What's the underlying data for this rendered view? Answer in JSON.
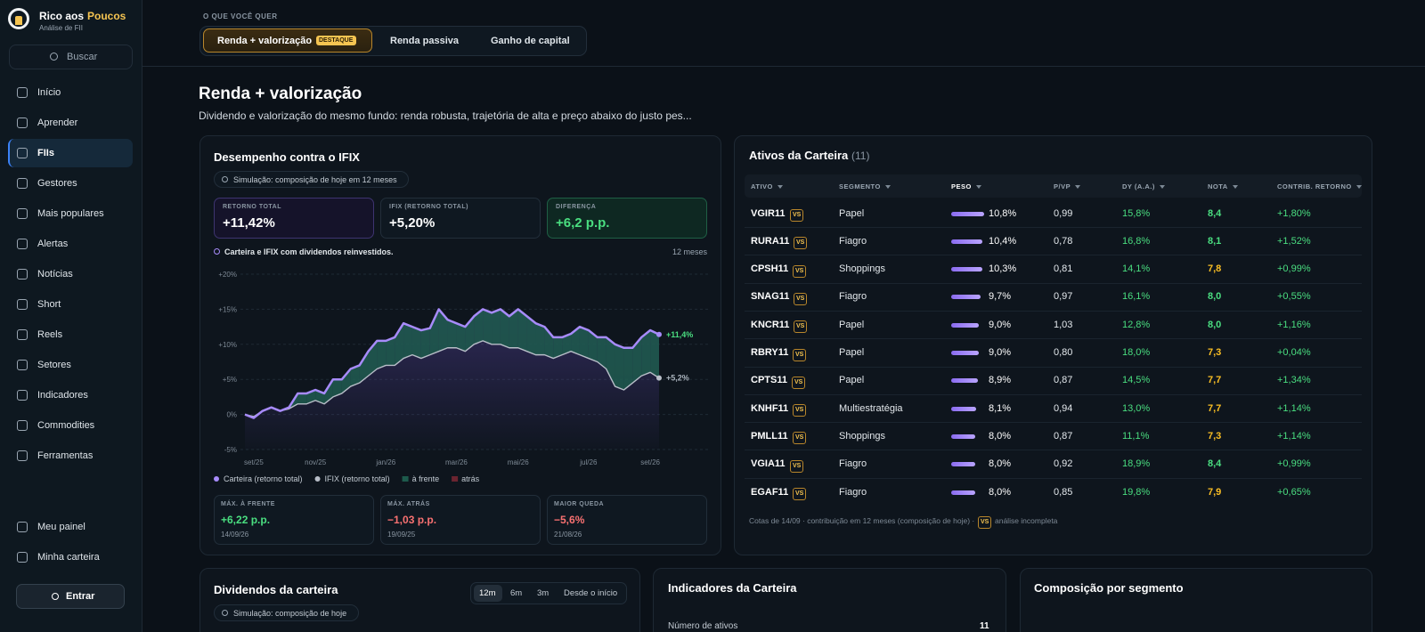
{
  "sidebar": {
    "brand_a": "Rico aos",
    "brand_b": "Poucos",
    "tagline": "Análise de FII",
    "search": "Buscar",
    "nav": [
      "Início",
      "Aprender",
      "FIIs",
      "Gestores",
      "Mais populares",
      "Alertas",
      "Notícias",
      "Short",
      "Reels",
      "Setores",
      "Indicadores",
      "Commodities",
      "Ferramentas"
    ],
    "active": 2,
    "bottom": [
      "Meu painel",
      "Minha carteira"
    ],
    "login": "Entrar"
  },
  "top": {
    "label": "O QUE VOCÊ QUER",
    "tabs": [
      "Renda + valorização",
      "Renda passiva",
      "Ganho de capital"
    ],
    "badge": "DESTAQUE"
  },
  "heading": {
    "title": "Renda + valorização",
    "description": "Dividendo e valorização do mesmo fundo: renda robusta, trajetória de alta e preço abaixo do justo pes..."
  },
  "performance": {
    "chip": "Simulação: composição de hoje em 12 meses",
    "stats": [
      {
        "label": "RETORNO TOTAL",
        "value": "+11,42%"
      },
      {
        "label": "IFIX (RETORNO TOTAL)",
        "value": "+5,20%"
      },
      {
        "label": "DIFERENÇA",
        "value": "+6,2 p.p."
      }
    ],
    "note": "Carteira e IFIX com dividendos reinvestidos.",
    "period": "12 meses",
    "bottom_stats": [
      {
        "label": "MÁX. À FRENTE",
        "value": "+6,22 p.p.",
        "date": "14/09/26"
      },
      {
        "label": "MÁX. ATRÁS",
        "value": "−1,03 p.p.",
        "date": "19/09/25"
      },
      {
        "label": "MAIOR QUEDA",
        "value": "−5,6%",
        "date": "21/08/26"
      }
    ]
  },
  "chart_data": {
    "type": "line",
    "title": "Desempenho contra o IFIX",
    "categories": [
      null,
      "set/25",
      null,
      null,
      null,
      null,
      null,
      null,
      "nov/25",
      null,
      null,
      null,
      null,
      null,
      null,
      null,
      "jan/26",
      null,
      null,
      null,
      null,
      null,
      null,
      null,
      "mar/26",
      null,
      null,
      null,
      null,
      null,
      null,
      "mai/26",
      null,
      null,
      null,
      null,
      null,
      null,
      null,
      "jul/26",
      null,
      null,
      null,
      null,
      null,
      null,
      "set/26",
      null
    ],
    "series": [
      {
        "name": "Carteira (retorno total)",
        "color": "#a78bfa",
        "end_label": "+11,4%",
        "values": [
          0,
          -0.5,
          0.5,
          1,
          0.5,
          1,
          3,
          3,
          3.5,
          3,
          5,
          5,
          6.5,
          7,
          9,
          10.5,
          10.5,
          11,
          13,
          12.5,
          12,
          12.3,
          15,
          13.5,
          13,
          12.5,
          14,
          15,
          14.5,
          15,
          14,
          15,
          14,
          13,
          12.5,
          11,
          11,
          11.5,
          12.5,
          12,
          11,
          11,
          10,
          9.5,
          9.5,
          11,
          12,
          11.4
        ]
      },
      {
        "name": "IFIX (retorno total)",
        "color": "#b8bec8",
        "end_label": "+5,2%",
        "values": [
          0,
          -0.3,
          0.5,
          1,
          0.5,
          0.8,
          1.5,
          1.5,
          2,
          1.5,
          2.5,
          3,
          4,
          4.5,
          5.5,
          6.5,
          7,
          7,
          8,
          8.5,
          8,
          8.5,
          9,
          9.5,
          9.5,
          9,
          10,
          10.5,
          10,
          10,
          9.5,
          9.5,
          9,
          8.5,
          8.5,
          8,
          8.5,
          9,
          8.5,
          8,
          7.5,
          6.5,
          4,
          3.5,
          4.5,
          5.5,
          6,
          5.2
        ]
      }
    ],
    "ahead": {
      "name": "à frente",
      "color": "#1d5a4c"
    },
    "behind": {
      "name": "atrás",
      "color": "#6b2430"
    },
    "ylim": [
      -5,
      20
    ],
    "yticks": [
      {
        "value": 20,
        "label": "+20%"
      },
      {
        "value": 15,
        "label": "+15%"
      },
      {
        "value": 10,
        "label": "+10%"
      },
      {
        "value": 5,
        "label": "+5%"
      },
      {
        "value": 0,
        "label": "0%"
      },
      {
        "value": -5,
        "label": "-5%"
      }
    ],
    "grid": true
  },
  "assets": {
    "title": "Ativos da Carteira",
    "count": "(11)",
    "columns": [
      "ATIVO",
      "SEGMENTO",
      "PESO",
      "P/VP",
      "DY (A.A.)",
      "NOTA",
      "CONTRIB. RETORNO"
    ],
    "rows": [
      {
        "ativo": "VGIR11",
        "badge": "VS",
        "segmento": "Papel",
        "peso": {
          "value": 10.8,
          "label": "10,8%"
        },
        "pvp": "0,99",
        "dy": "15,8%",
        "nota": "8,4",
        "nota_color": "#4ade80",
        "contrib": "+1,80%"
      },
      {
        "ativo": "RURA11",
        "badge": "VS",
        "segmento": "Fiagro",
        "peso": {
          "value": 10.4,
          "label": "10,4%"
        },
        "pvp": "0,78",
        "dy": "16,8%",
        "nota": "8,1",
        "nota_color": "#4ade80",
        "contrib": "+1,52%"
      },
      {
        "ativo": "CPSH11",
        "badge": "VS",
        "segmento": "Shoppings",
        "peso": {
          "value": 10.3,
          "label": "10,3%"
        },
        "pvp": "0,81",
        "dy": "14,1%",
        "nota": "7,8",
        "nota_color": "#fbbf24",
        "contrib": "+0,99%"
      },
      {
        "ativo": "SNAG11",
        "badge": "VS",
        "segmento": "Fiagro",
        "peso": {
          "value": 9.7,
          "label": "9,7%"
        },
        "pvp": "0,97",
        "dy": "16,1%",
        "nota": "8,0",
        "nota_color": "#4ade80",
        "contrib": "+0,55%"
      },
      {
        "ativo": "KNCR11",
        "badge": "VS",
        "segmento": "Papel",
        "peso": {
          "value": 9.0,
          "label": "9,0%"
        },
        "pvp": "1,03",
        "dy": "12,8%",
        "nota": "8,0",
        "nota_color": "#4ade80",
        "contrib": "+1,16%"
      },
      {
        "ativo": "RBRY11",
        "badge": "VS",
        "segmento": "Papel",
        "peso": {
          "value": 9.0,
          "label": "9,0%"
        },
        "pvp": "0,80",
        "dy": "18,0%",
        "nota": "7,3",
        "nota_color": "#fbbf24",
        "contrib": "+0,04%"
      },
      {
        "ativo": "CPTS11",
        "badge": "VS",
        "segmento": "Papel",
        "peso": {
          "value": 8.9,
          "label": "8,9%"
        },
        "pvp": "0,87",
        "dy": "14,5%",
        "nota": "7,7",
        "nota_color": "#fbbf24",
        "contrib": "+1,34%"
      },
      {
        "ativo": "KNHF11",
        "badge": "VS",
        "segmento": "Multiestratégia",
        "peso": {
          "value": 8.1,
          "label": "8,1%"
        },
        "pvp": "0,94",
        "dy": "13,0%",
        "nota": "7,7",
        "nota_color": "#fbbf24",
        "contrib": "+1,14%"
      },
      {
        "ativo": "PMLL11",
        "badge": "VS",
        "segmento": "Shoppings",
        "peso": {
          "value": 8.0,
          "label": "8,0%"
        },
        "pvp": "0,87",
        "dy": "11,1%",
        "nota": "7,3",
        "nota_color": "#fbbf24",
        "contrib": "+1,14%"
      },
      {
        "ativo": "VGIA11",
        "badge": "VS",
        "segmento": "Fiagro",
        "peso": {
          "value": 8.0,
          "label": "8,0%"
        },
        "pvp": "0,92",
        "dy": "18,9%",
        "nota": "8,4",
        "nota_color": "#4ade80",
        "contrib": "+0,99%"
      },
      {
        "ativo": "EGAF11",
        "badge": "VS",
        "segmento": "Fiagro",
        "peso": {
          "value": 8.0,
          "label": "8,0%"
        },
        "pvp": "0,85",
        "dy": "19,8%",
        "nota": "7,9",
        "nota_color": "#fbbf24",
        "contrib": "+0,65%"
      }
    ],
    "footnote": "Cotas de 14/09 · contribuição em 12 meses (composição de hoje) ·",
    "footnote_badge": "VS",
    "footnote_end": "análise incompleta"
  },
  "dividends": {
    "title": "Dividendos da carteira",
    "tabs": [
      "12m",
      "6m",
      "3m",
      "Desde o início"
    ],
    "chip": "Simulação: composição de hoje"
  },
  "indicators": {
    "title": "Indicadores da Carteira",
    "row_label": "Número de ativos",
    "row_value": "11"
  },
  "composition": {
    "title": "Composição por segmento"
  }
}
